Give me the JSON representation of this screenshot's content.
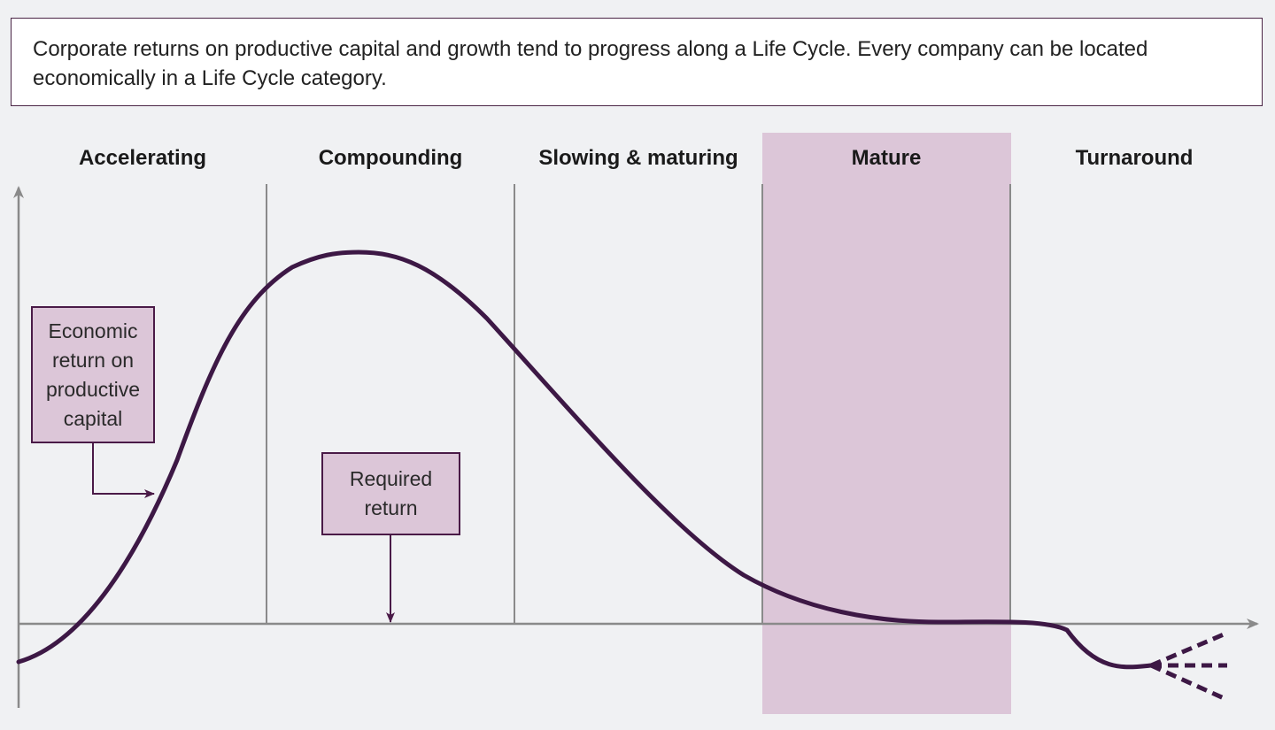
{
  "caption": "Corporate returns on productive capital and growth tend to progress along a Life Cycle. Every company can be located economically in a Life Cycle category.",
  "stages": [
    {
      "id": "accelerating",
      "label": "Accelerating"
    },
    {
      "id": "compounding",
      "label": "Compounding"
    },
    {
      "id": "slowing",
      "label": "Slowing & maturing"
    },
    {
      "id": "mature",
      "label": "Mature",
      "highlighted": true
    },
    {
      "id": "turnaround",
      "label": "Turnaround"
    }
  ],
  "callouts": {
    "economic_return": "Economic\nreturn on\nproductive\ncapital",
    "required_return": "Required\nreturn"
  },
  "colors": {
    "curve": "#3d1845",
    "highlight": "#dcc6d8",
    "axis": "#8a8a8a",
    "callout_fill": "#dcc6d8",
    "callout_border": "#4a1a47"
  }
}
